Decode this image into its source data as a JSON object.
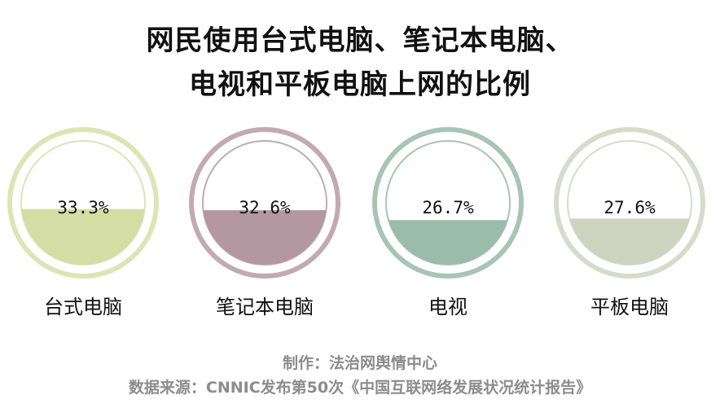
{
  "title_line1": "网民使用台式电脑、笔记本电脑、",
  "title_line2": "电视和平板电脑上网的比例",
  "credit_maker": "制作：法治网舆情中心",
  "credit_source": "数据来源：CNNIC发布第50次《中国互联网络发展状况统计报告》",
  "chart_data": {
    "type": "gauge",
    "unit": "%",
    "categories": [
      "台式电脑",
      "笔记本电脑",
      "电视",
      "平板电脑"
    ],
    "values": [
      33.3,
      32.6,
      26.7,
      27.6
    ],
    "value_labels": [
      "33.3%",
      "32.6%",
      "26.7%",
      "27.6%"
    ],
    "colors": [
      "#d3dda4",
      "#b397a1",
      "#9bbbab",
      "#cdd3bf"
    ],
    "ring_colors": [
      "#dce5b4",
      "#c3aab2",
      "#a7c5b6",
      "#d6dcca"
    ]
  }
}
